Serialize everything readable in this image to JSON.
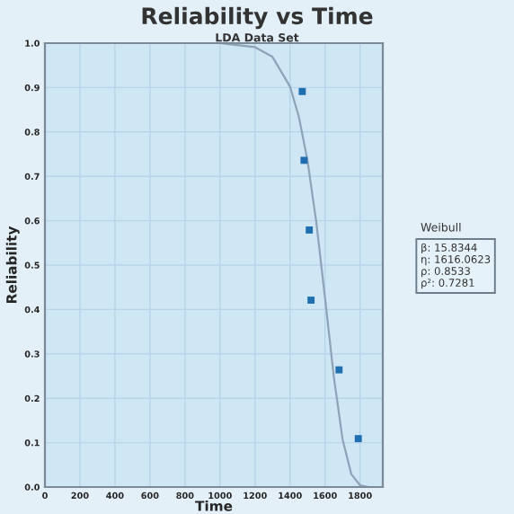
{
  "chart_data": {
    "type": "scatter",
    "title": "Reliability vs Time",
    "subtitle": "LDA Data Set",
    "xlabel": "Time",
    "ylabel": "Reliability",
    "series": [
      {
        "color": "#1f6fb0",
        "x": [
          1470,
          1480,
          1510,
          1520,
          1680,
          1790
        ],
        "values": [
          0.891,
          0.736,
          0.579,
          0.421,
          0.264,
          0.109
        ]
      },
      {
        "type": "line",
        "color": "#8fa3b8",
        "x": [
          0,
          800,
          1000,
          1200,
          1300,
          1400,
          1450,
          1500,
          1550,
          1600,
          1650,
          1700,
          1750,
          1800,
          1850
        ],
        "values": [
          1.0,
          1.0,
          1.0,
          0.991,
          0.969,
          0.902,
          0.835,
          0.735,
          0.597,
          0.426,
          0.249,
          0.108,
          0.029,
          0.004,
          0.0
        ]
      }
    ],
    "xlim": [
      0,
      1930
    ],
    "ylim": [
      0,
      1.0
    ],
    "xticks": [
      0,
      200,
      400,
      600,
      800,
      1000,
      1200,
      1400,
      1600,
      1800
    ],
    "yticks": [
      {
        "value": 0,
        "label": "0.0"
      },
      {
        "value": 0.1,
        "label": "0.1"
      },
      {
        "value": 0.2,
        "label": "0.2"
      },
      {
        "value": 0.3,
        "label": "0.3"
      },
      {
        "value": 0.4,
        "label": "0.4"
      },
      {
        "value": 0.5,
        "label": "0.5"
      },
      {
        "value": 0.6,
        "label": "0.6"
      },
      {
        "value": 0.7,
        "label": "0.7"
      },
      {
        "value": 0.8,
        "label": "0.8"
      },
      {
        "value": 0.9,
        "label": "0.9"
      },
      {
        "value": 1.0,
        "label": "1.0"
      }
    ],
    "grid": true,
    "annotations": [
      "Weibull",
      "β: 15.8344\nη: 1616.0623\nρ: 0.8533\nρ²: 0.7281"
    ]
  }
}
